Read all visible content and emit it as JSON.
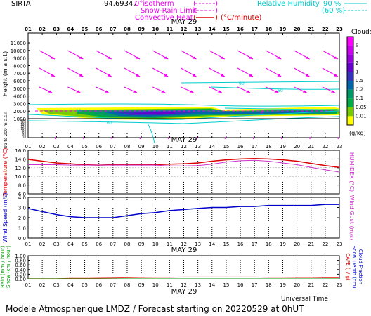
{
  "header": {
    "station": "SIRTA",
    "coords": "94.69347",
    "legend_isotherm": "0°isotherm",
    "legend_snow": "Snow-Rain Limit",
    "legend_convective": "Convective Heat",
    "legend_convective_unit": "(°C/minute)",
    "legend_rh": "Relative Humidity",
    "legend_rh_90": "90 %",
    "legend_rh_60": "(60 %)"
  },
  "hours": [
    "01",
    "02",
    "03",
    "04",
    "05",
    "06",
    "07",
    "08",
    "09",
    "10",
    "11",
    "12",
    "13",
    "14",
    "15",
    "16",
    "17",
    "18",
    "19",
    "20",
    "21",
    "22",
    "23"
  ],
  "date_label": "MAY 29",
  "footer": {
    "universal_time": "Universal Time",
    "title": "Modele Atmospherique LMDZ / Forecast starting on 20220529 at 0hUT"
  },
  "colors": {
    "temperature": "#dd0000",
    "humidex": "#cc33cc",
    "wind": "#0000cc",
    "rain": "#ee3333",
    "snow": "#009900",
    "rh": "#00cccc",
    "isotherm": "#ee00ee"
  },
  "chart_data": [
    {
      "type": "heatmap",
      "name": "clouds-height",
      "ylabel": "Height (m a.s.l.)",
      "ylabel2": "Up to 200 m a.s.l.",
      "yticks_upper": [
        11000,
        10000,
        9000,
        8000,
        7000,
        6000,
        5000,
        4000,
        3000,
        2000,
        1000
      ],
      "yticks_lower": [
        180,
        160,
        140,
        120,
        100,
        80,
        60,
        40,
        20
      ],
      "colorbar_title": "Clouds",
      "colorbar_unit": "(g/kg)",
      "colorbar_ticks": [
        "9",
        "5",
        "2",
        "1",
        "0.5",
        "0.2",
        "0.1",
        "0.05",
        "0.01"
      ],
      "colorbar_colors": [
        "#ff00ff",
        "#cc00ee",
        "#9900dd",
        "#6600cc",
        "#3333bb",
        "#0066aa",
        "#009966",
        "#00aa44",
        "#77cc00",
        "#ffff00"
      ],
      "rh_labels": [
        "90",
        "60"
      ],
      "isotherm_label": "0°",
      "wind_arrow_rows": [
        10000,
        7500,
        5000
      ]
    },
    {
      "type": "line",
      "name": "temperature",
      "ylabel": "Temperature (°C)",
      "ylabel2": "HUMIDEX (°C)",
      "ylim": [
        6.0,
        16.0
      ],
      "yticks": [
        "16.0",
        "14.0",
        "12.0",
        "10.0",
        "8.0",
        "6.0"
      ],
      "series": [
        {
          "values": [
            13.9,
            13.5,
            13.1,
            12.9,
            12.7,
            12.6,
            12.7,
            12.7,
            12.7,
            12.7,
            12.8,
            12.9,
            13.1,
            13.5,
            13.8,
            14.0,
            14.1,
            14.0,
            13.8,
            13.5,
            13.0,
            12.5,
            12.1
          ]
        },
        {
          "values": [
            12.7,
            12.7,
            12.7,
            12.6,
            12.6,
            12.6,
            12.6,
            12.6,
            12.6,
            12.6,
            12.4,
            12.4,
            12.5,
            12.8,
            13.3,
            13.6,
            13.7,
            13.5,
            13.1,
            12.7,
            12.1,
            11.5,
            11.0
          ]
        }
      ]
    },
    {
      "type": "line",
      "name": "wind",
      "ylabel": "Wind Speed (m/s)",
      "ylabel2": "Wind Gust (m/s)",
      "ylim": [
        0.0,
        4.0
      ],
      "yticks": [
        "4.0",
        "3.0",
        "2.0",
        "1.0",
        "0.0"
      ],
      "series": [
        {
          "values": [
            2.9,
            2.6,
            2.3,
            2.1,
            2.0,
            2.0,
            2.0,
            2.2,
            2.4,
            2.5,
            2.7,
            2.8,
            2.9,
            3.0,
            3.0,
            3.1,
            3.1,
            3.2,
            3.2,
            3.2,
            3.2,
            3.3,
            3.3
          ]
        }
      ]
    },
    {
      "type": "line",
      "name": "precipitation",
      "ylabel": "Rain (mm / hour)",
      "ylabel2": "Snow (cm / hour)",
      "ylabel_r": "CAPE (J / g)",
      "ylabel_r2": "Snow Depth (cm)",
      "ylabel_r3": "Cloud Fraction",
      "ylim": [
        0.0,
        1.0
      ],
      "yticks": [
        "1.00",
        "0.80",
        "0.60",
        "0.40",
        "0.20",
        "0.00"
      ],
      "series": [
        {
          "values": [
            0.01,
            0.01,
            0.01,
            0.02,
            0.02,
            0.03,
            0.04,
            0.05,
            0.06,
            0.07,
            0.07,
            0.08,
            0.08,
            0.08,
            0.08,
            0.08,
            0.08,
            0.07,
            0.07,
            0.06,
            0.06,
            0.05,
            0.05
          ]
        },
        {
          "values": [
            0,
            0,
            0,
            0,
            0,
            0,
            0,
            0,
            0,
            0,
            0,
            0,
            0,
            0,
            0,
            0,
            0,
            0,
            0,
            0,
            0,
            0,
            0
          ]
        }
      ]
    }
  ]
}
